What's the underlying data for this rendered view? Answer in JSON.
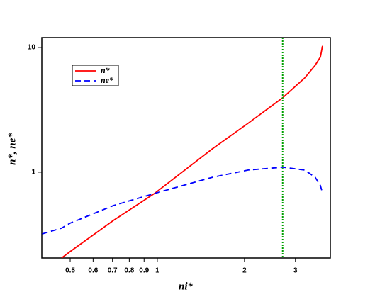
{
  "chart_data": {
    "type": "line",
    "xlog": true,
    "ylog": true,
    "x_label": "ni*",
    "y_label": "n*, ne*",
    "x": [
      0.4,
      0.467,
      0.5,
      0.705,
      0.978,
      1.55,
      2.06,
      2.71,
      3.23,
      3.51,
      3.66,
      3.72
    ],
    "series": [
      {
        "name": "n*",
        "color": "#ff0000",
        "dash": "none",
        "values": [
          null,
          0.205,
          0.231,
          0.41,
          0.675,
          1.54,
          2.47,
          3.95,
          5.7,
          7.2,
          8.4,
          10.3
        ]
      },
      {
        "name": "ne*",
        "color": "#0000ff",
        "dash": "8,5",
        "values": [
          0.32,
          0.356,
          0.39,
          0.54,
          0.675,
          0.91,
          1.04,
          1.096,
          1.04,
          0.91,
          0.78,
          0.68
        ]
      }
    ],
    "vline": {
      "x": 2.71,
      "color": "#00a000"
    },
    "xlim": [
      0.399,
      3.96
    ],
    "ylim": [
      0.205,
      12.0
    ],
    "xticks": [
      0.5,
      0.6,
      0.7,
      0.8,
      0.9,
      1,
      2,
      3
    ],
    "yticks": [
      1,
      10
    ]
  }
}
